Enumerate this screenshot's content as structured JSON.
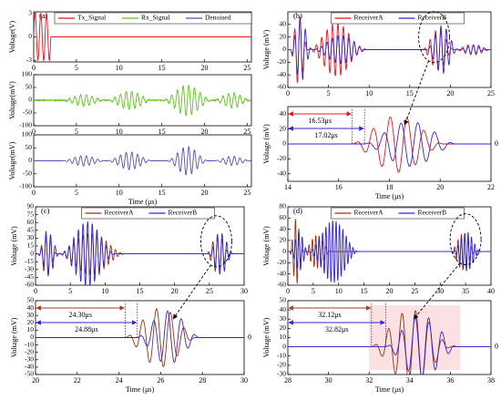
{
  "colors": {
    "tx": "#e8141e",
    "rx": "#5cc219",
    "denoised": "#5050b4",
    "receiverA_red": "#e8141e",
    "receiverB": "#3323d8",
    "receiverA_brown": "#963214",
    "annotation_red": "#e8141e",
    "annotation_blue": "#3323d8",
    "annotation_brown": "#a0401e",
    "highlight_band": "#f7c9cc"
  },
  "chart_data": [
    {
      "id": "a1",
      "panel_label": "(a)",
      "type": "line",
      "ylabel": "Voltage(V)",
      "xlim": [
        0,
        25.5
      ],
      "ylim": [
        -3.2,
        3.2
      ],
      "xticks": [
        0,
        5,
        10,
        15,
        20,
        25
      ],
      "xticklabels": [
        "0",
        "5",
        "10",
        "15",
        "20",
        "25"
      ],
      "yticks": [
        -3,
        0,
        3
      ],
      "yticklabels": [
        "-3",
        "0",
        "3"
      ],
      "legend_position": "top",
      "series": [
        {
          "name": "Tx_Signal",
          "color_key": "tx",
          "kind": "burst",
          "start": 0.0,
          "end": 2.0,
          "amp": 3.0,
          "freq": 1.5,
          "offset": 0,
          "window": "rect",
          "noise": 0
        },
        {
          "name": "Rx_Signal",
          "color_key": "rx",
          "legend_only": true
        },
        {
          "name": "Denoised",
          "color_key": "denoised",
          "legend_only": true
        }
      ]
    },
    {
      "id": "a2",
      "type": "line",
      "ylabel": "Voltage(mV)",
      "xlim": [
        0,
        25.5
      ],
      "ylim": [
        -100,
        100
      ],
      "xticks": [
        0,
        5,
        10,
        15,
        20,
        25
      ],
      "xticklabels": [
        "0",
        "5",
        "10",
        "15",
        "20",
        "25"
      ],
      "yticks": [
        -100,
        -50,
        0,
        50,
        100
      ],
      "yticklabels": [
        "-100",
        "-50",
        "0",
        "50",
        "100"
      ],
      "series": [
        {
          "name": "Rx_Signal",
          "color_key": "rx",
          "kind": "packets",
          "freq": 1.5,
          "noise": 4,
          "packets": [
            [
              3.2,
              8.5,
              22
            ],
            [
              8.5,
              14.0,
              36
            ],
            [
              15.0,
              21.0,
              60
            ],
            [
              21.0,
              25.5,
              30
            ]
          ]
        }
      ]
    },
    {
      "id": "a3",
      "type": "line",
      "ylabel": "Voltage(mV)",
      "xlabel": "Time (μs)",
      "xlim": [
        0,
        25.5
      ],
      "ylim": [
        -100,
        100
      ],
      "xticks": [
        0,
        5,
        10,
        15,
        20,
        25
      ],
      "xticklabels": [
        "0",
        "5",
        "10",
        "15",
        "20",
        "25"
      ],
      "yticks": [
        -100,
        -50,
        0,
        50,
        100
      ],
      "yticklabels": [
        "-100",
        "-50",
        "0",
        "50",
        "100"
      ],
      "series": [
        {
          "name": "Denoised",
          "color_key": "denoised",
          "kind": "packets",
          "freq": 1.5,
          "noise": 0,
          "packets": [
            [
              3.2,
              8.5,
              20
            ],
            [
              8.5,
              14.0,
              34
            ],
            [
              15.5,
              20.5,
              55
            ],
            [
              21.0,
              25.5,
              18
            ]
          ]
        }
      ]
    },
    {
      "id": "b1",
      "panel_label": "(b)",
      "type": "line",
      "ylabel": "Voltage (mV)",
      "xlim": [
        0,
        25
      ],
      "ylim": [
        -60,
        60
      ],
      "xticks": [
        0,
        5,
        10,
        15,
        20,
        25
      ],
      "xticklabels": [
        "0",
        "5",
        "10",
        "15",
        "20",
        "25"
      ],
      "yticks": [
        -60,
        -40,
        -20,
        0,
        20,
        40
      ],
      "yticklabels": [
        "-60",
        "-40",
        "-20",
        "0",
        "20",
        "40"
      ],
      "legend_position": "top",
      "zoom_ellipse": [
        18.0,
        20
      ],
      "series": [
        {
          "name": "ReceiverA",
          "color_key": "receiverA_red",
          "kind": "packets",
          "freq": 1.5,
          "noise": 0,
          "packets": [
            [
              0.2,
              2.5,
              55
            ],
            [
              2.5,
              9.5,
              42
            ],
            [
              16.5,
              20.5,
              32
            ],
            [
              20.5,
              24.5,
              8
            ]
          ]
        },
        {
          "name": "ReceiverB",
          "color_key": "receiverB",
          "kind": "packets",
          "freq": 1.5,
          "noise": 0,
          "packets": [
            [
              0.2,
              3.0,
              50
            ],
            [
              3.0,
              10.0,
              22
            ],
            [
              17.0,
              21.0,
              38
            ],
            [
              21.0,
              25.0,
              8
            ]
          ]
        }
      ]
    },
    {
      "id": "b2",
      "type": "line",
      "ylabel": "Voltage (mV)",
      "xlabel": "Time (μs)",
      "xlim": [
        14,
        22
      ],
      "ylim": [
        -50,
        50
      ],
      "xticks": [
        14,
        16,
        18,
        20,
        22
      ],
      "xticklabels": [
        "14",
        "16",
        "18",
        "20",
        "22"
      ],
      "yticks": [
        -40,
        -20,
        0,
        20,
        40
      ],
      "yticklabels": [
        "-40",
        "-20",
        "0",
        "20",
        "40"
      ],
      "zero_label": "0",
      "arrival_A": 16.53,
      "arrival_B": 17.02,
      "arrival_A_label": "16.53μs",
      "arrival_B_label": "17.02μs",
      "annotation_A_color_key": "annotation_red",
      "series": [
        {
          "name": "ReceiverA",
          "color_key": "receiverA_red",
          "kind": "burst",
          "start": 16.53,
          "end": 21.0,
          "amp": 38,
          "freq": 1.5,
          "offset": 0,
          "window": "hann",
          "noise": 0
        },
        {
          "name": "ReceiverB",
          "color_key": "receiverB",
          "kind": "burst",
          "start": 17.02,
          "end": 21.5,
          "amp": 30,
          "freq": 1.5,
          "offset": 0.6,
          "window": "hann",
          "noise": 0
        }
      ]
    },
    {
      "id": "c1",
      "panel_label": "(c)",
      "type": "line",
      "ylabel": "Voltage (mV)",
      "xlim": [
        0,
        30
      ],
      "ylim": [
        -60,
        90
      ],
      "xticks": [
        0,
        5,
        10,
        15,
        20,
        25,
        30
      ],
      "xticklabels": [
        "0",
        "5",
        "10",
        "15",
        "20",
        "25",
        "30"
      ],
      "yticks": [
        -60,
        -45,
        -30,
        -15,
        0,
        15,
        30,
        45,
        60,
        75,
        90
      ],
      "yticklabels": [
        "-60",
        "-45",
        "-30",
        "-15",
        "0",
        "15",
        "30",
        "45",
        "60",
        "75",
        "90"
      ],
      "legend_position": "top",
      "zoom_ellipse": [
        26.0,
        24
      ],
      "series": [
        {
          "name": "ReceiverA",
          "color_key": "receiverA_brown",
          "kind": "packets",
          "freq": 1.5,
          "noise": 0,
          "packets": [
            [
              0.3,
              3.0,
              45
            ],
            [
              3.0,
              13.0,
              40
            ],
            [
              24.5,
              28.0,
              38
            ]
          ]
        },
        {
          "name": "ReceiverB",
          "color_key": "receiverB",
          "kind": "packets",
          "freq": 1.5,
          "noise": 0,
          "packets": [
            [
              0.3,
              3.5,
              40
            ],
            [
              3.5,
              11.5,
              62
            ],
            [
              24.8,
              28.5,
              40
            ]
          ]
        }
      ]
    },
    {
      "id": "c2",
      "type": "line",
      "ylabel": "Voltage (mV)",
      "xlabel": "Time (μs)",
      "xlim": [
        20,
        30
      ],
      "ylim": [
        -50,
        50
      ],
      "xticks": [
        20,
        22,
        24,
        26,
        28,
        30
      ],
      "xticklabels": [
        "20",
        "22",
        "24",
        "26",
        "28",
        "30"
      ],
      "yticks": [
        -50,
        -40,
        -30,
        -20,
        -10,
        0,
        10,
        20,
        30,
        40,
        50
      ],
      "yticklabels": [
        "-50",
        "-40",
        "-30",
        "-20",
        "-10",
        "0",
        "10",
        "20",
        "30",
        "40",
        "50"
      ],
      "zero_label": "0",
      "arrival_A": 24.3,
      "arrival_B": 24.88,
      "arrival_A_label": "24.30μs",
      "arrival_B_label": "24.88μs",
      "annotation_A_color_key": "annotation_brown",
      "series": [
        {
          "name": "ReceiverA",
          "color_key": "receiverA_brown",
          "kind": "burst",
          "start": 24.3,
          "end": 28.5,
          "amp": 40,
          "freq": 1.5,
          "offset": 0,
          "window": "hann",
          "noise": 0
        },
        {
          "name": "ReceiverB",
          "color_key": "receiverB",
          "kind": "burst",
          "start": 24.88,
          "end": 28.6,
          "amp": 36,
          "freq": 1.5,
          "offset": 0.5,
          "window": "hann",
          "noise": 0
        }
      ]
    },
    {
      "id": "d1",
      "panel_label": "(d)",
      "type": "line",
      "ylabel": "Voltage (mV)",
      "xlim": [
        0,
        40
      ],
      "ylim": [
        -60,
        80
      ],
      "xticks": [
        0,
        5,
        10,
        15,
        20,
        25,
        30,
        35,
        40
      ],
      "xticklabels": [
        "0",
        "5",
        "10",
        "15",
        "20",
        "25",
        "30",
        "35",
        "40"
      ],
      "yticks": [
        -60,
        -40,
        -20,
        0,
        20,
        40,
        60,
        80
      ],
      "yticklabels": [
        "-60",
        "-40",
        "-20",
        "0",
        "20",
        "40",
        "60",
        "80"
      ],
      "legend_position": "top",
      "zoom_ellipse": [
        35.0,
        22
      ],
      "series": [
        {
          "name": "ReceiverA",
          "color_key": "receiverA_brown",
          "kind": "packets",
          "freq": 1.5,
          "noise": 0,
          "packets": [
            [
              0.3,
              3.0,
              60
            ],
            [
              3.0,
              8.5,
              30
            ],
            [
              32.0,
              37.0,
              33
            ]
          ]
        },
        {
          "name": "ReceiverB",
          "color_key": "receiverB",
          "kind": "packets",
          "freq": 1.5,
          "noise": 0,
          "packets": [
            [
              0.5,
              4.0,
              35
            ],
            [
              4.0,
              14.0,
              56
            ],
            [
              32.5,
              38.0,
              35
            ]
          ]
        }
      ]
    },
    {
      "id": "d2",
      "type": "line",
      "ylabel": "Voltage (mV)",
      "xlabel": "Time (μs)",
      "xlim": [
        28,
        38
      ],
      "ylim": [
        -30,
        50
      ],
      "xticks": [
        28,
        30,
        32,
        34,
        36,
        38
      ],
      "xticklabels": [
        "28",
        "30",
        "32",
        "34",
        "36",
        "38"
      ],
      "yticks": [
        -30,
        -20,
        -10,
        0,
        10,
        20,
        30,
        40,
        50
      ],
      "yticklabels": [
        "-30",
        "-20",
        "-10",
        "0",
        "10",
        "20",
        "30",
        "40",
        "50"
      ],
      "zero_label": "0",
      "arrival_A": 32.12,
      "arrival_B": 32.82,
      "arrival_A_label": "32.12μs",
      "arrival_B_label": "32.82μs",
      "annotation_A_color_key": "annotation_brown",
      "highlight": true,
      "series": [
        {
          "name": "ReceiverA",
          "color_key": "receiverA_brown",
          "kind": "burst",
          "start": 32.12,
          "end": 37.0,
          "amp": 40,
          "freq": 1.5,
          "offset": 0,
          "window": "hann",
          "noise": 0
        },
        {
          "name": "ReceiverB",
          "color_key": "receiverB",
          "kind": "burst",
          "start": 32.82,
          "end": 37.2,
          "amp": 34,
          "freq": 1.5,
          "offset": 0.5,
          "window": "hann",
          "noise": 0
        }
      ]
    }
  ]
}
